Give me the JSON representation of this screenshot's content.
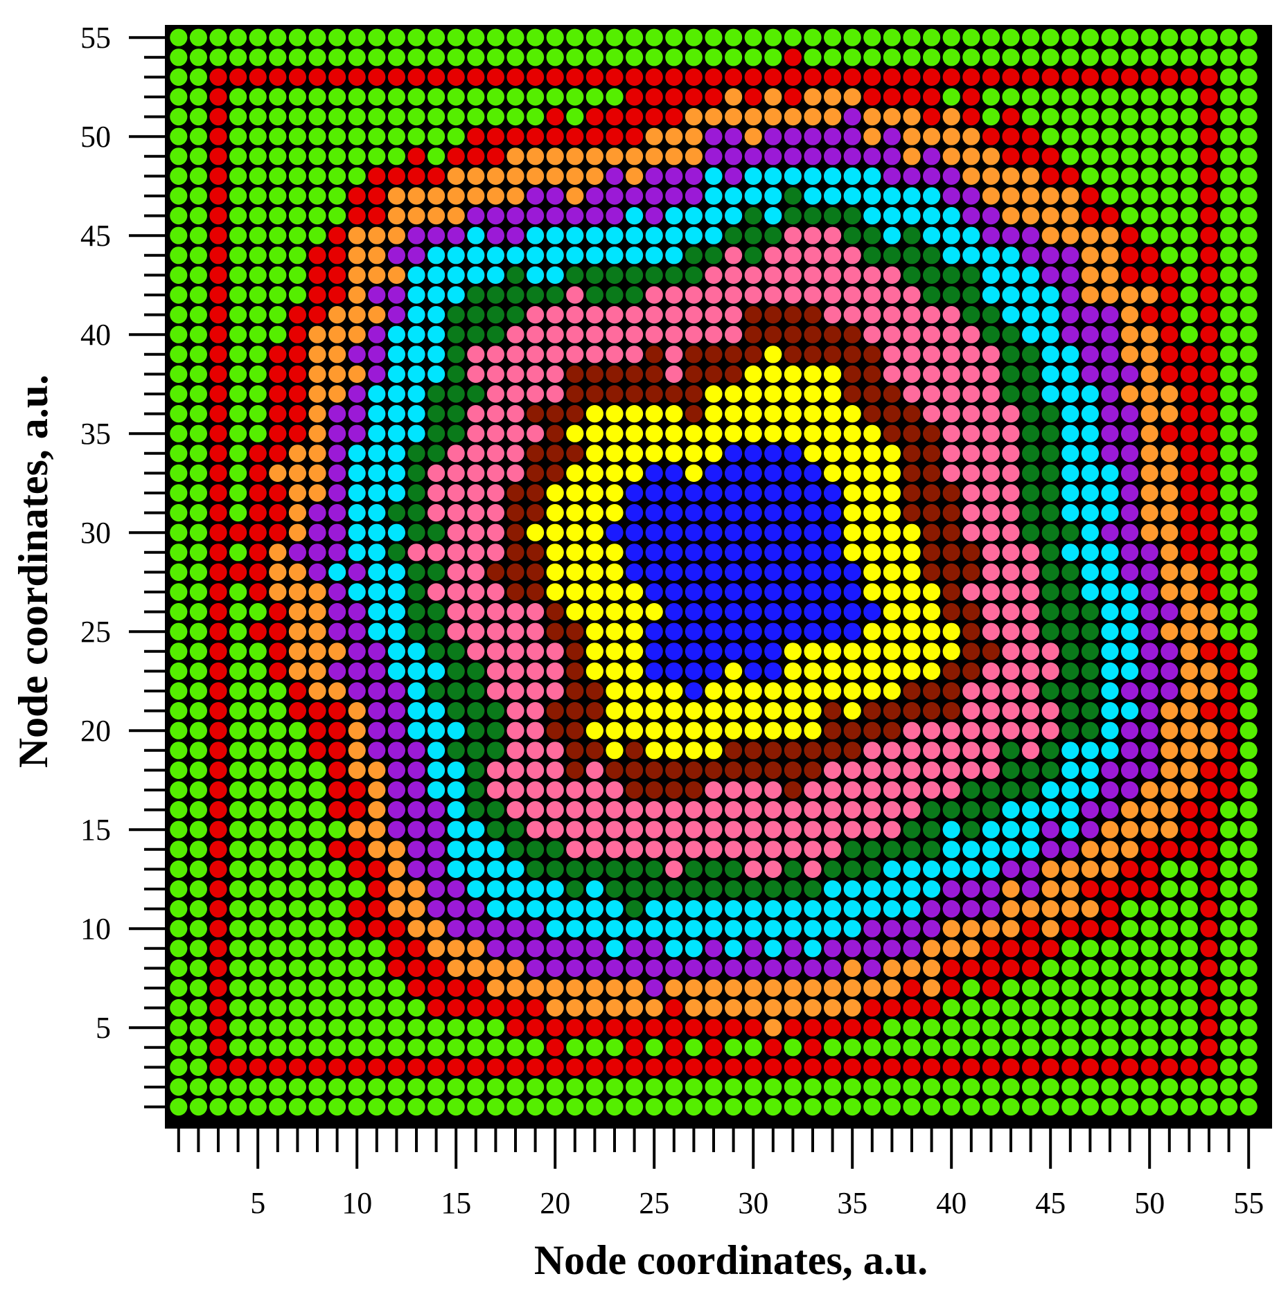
{
  "chart_data": {
    "type": "scatter",
    "grid": "55x55 lattice of nodes, each node colored by cluster",
    "xlabel": "Node coordinates, a.u.",
    "ylabel": "Node coordinates, a.u.",
    "xlim": [
      0.5,
      55.5
    ],
    "ylim": [
      0.5,
      55.5
    ],
    "x_ticks": [
      5,
      10,
      15,
      20,
      25,
      30,
      35,
      40,
      45,
      50,
      55
    ],
    "y_ticks": [
      5,
      10,
      15,
      20,
      25,
      30,
      35,
      40,
      45,
      50,
      55
    ],
    "plot_background": "#000000",
    "cluster_colors": [
      "#1a1aff",
      "#ffff00",
      "#8b1a00",
      "#ff6b9d",
      "#0a7a1a",
      "#00e5ff",
      "#9b1ad6",
      "#ff9a2e",
      "#e60000",
      "#55ee00"
    ],
    "cluster_layout": "concentric rings from center outward: blue core, yellow, brown, pink, dark green, cyan, purple, orange, red, lime green border",
    "center": [
      29.5,
      28.5
    ],
    "ring_outer_radius": [
      6.5,
      10.5,
      13.0,
      17.0,
      19.0,
      21.5,
      23.5,
      25.5,
      27.2,
      99
    ]
  }
}
